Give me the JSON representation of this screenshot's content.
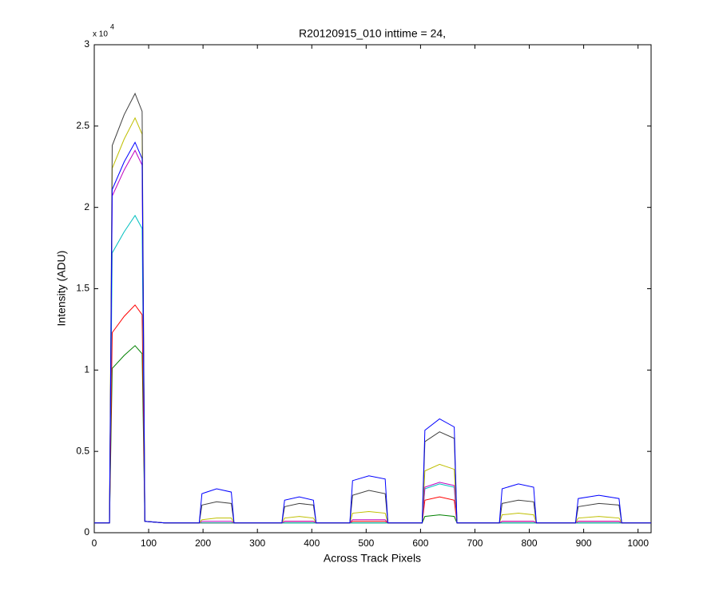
{
  "chart_data": {
    "type": "line",
    "title": "R20120915_010 inttime = 24,",
    "xlabel": "Across Track Pixels",
    "ylabel": "Intensity (ADU)",
    "y_multiplier": "x 10",
    "y_multiplier_exponent": "4",
    "xlim": [
      0,
      1024
    ],
    "ylim": [
      0,
      3
    ],
    "xticks": [
      0,
      100,
      200,
      300,
      400,
      500,
      600,
      700,
      800,
      900,
      1000
    ],
    "yticks": [
      0,
      0.5,
      1,
      1.5,
      2,
      2.5,
      3
    ],
    "x": [
      0,
      28,
      33,
      55,
      75,
      88,
      93,
      130,
      193,
      198,
      225,
      252,
      257,
      345,
      350,
      377,
      403,
      408,
      470,
      475,
      505,
      535,
      540,
      603,
      608,
      635,
      662,
      667,
      745,
      750,
      780,
      808,
      813,
      885,
      890,
      928,
      965,
      970,
      1024
    ],
    "series": [
      {
        "color": "#008000",
        "values": [
          0.06,
          0.06,
          1.01,
          1.09,
          1.15,
          1.1,
          0.07,
          0.06,
          0.06,
          0.06,
          0.06,
          0.06,
          0.06,
          0.06,
          0.06,
          0.06,
          0.06,
          0.06,
          0.06,
          0.06,
          0.06,
          0.06,
          0.06,
          0.06,
          0.1,
          0.11,
          0.1,
          0.06,
          0.06,
          0.06,
          0.06,
          0.06,
          0.06,
          0.06,
          0.06,
          0.06,
          0.06,
          0.06,
          0.06
        ]
      },
      {
        "color": "#ff0000",
        "values": [
          0.06,
          0.06,
          1.23,
          1.33,
          1.4,
          1.34,
          0.07,
          0.06,
          0.06,
          0.06,
          0.06,
          0.06,
          0.06,
          0.06,
          0.07,
          0.07,
          0.07,
          0.06,
          0.06,
          0.07,
          0.07,
          0.07,
          0.06,
          0.06,
          0.2,
          0.22,
          0.2,
          0.06,
          0.06,
          0.07,
          0.07,
          0.07,
          0.06,
          0.06,
          0.07,
          0.07,
          0.07,
          0.06,
          0.06
        ]
      },
      {
        "color": "#00bfbf",
        "values": [
          0.06,
          0.06,
          1.72,
          1.85,
          1.95,
          1.87,
          0.07,
          0.06,
          0.06,
          0.06,
          0.06,
          0.06,
          0.06,
          0.06,
          0.06,
          0.06,
          0.06,
          0.06,
          0.06,
          0.06,
          0.06,
          0.06,
          0.06,
          0.06,
          0.27,
          0.3,
          0.28,
          0.06,
          0.06,
          0.06,
          0.06,
          0.06,
          0.06,
          0.06,
          0.06,
          0.06,
          0.06,
          0.06,
          0.06
        ]
      },
      {
        "color": "#bf00bf",
        "values": [
          0.06,
          0.06,
          2.07,
          2.23,
          2.35,
          2.26,
          0.07,
          0.06,
          0.06,
          0.07,
          0.07,
          0.07,
          0.06,
          0.06,
          0.07,
          0.07,
          0.07,
          0.06,
          0.06,
          0.08,
          0.08,
          0.08,
          0.06,
          0.06,
          0.28,
          0.31,
          0.29,
          0.06,
          0.06,
          0.07,
          0.07,
          0.07,
          0.06,
          0.06,
          0.07,
          0.07,
          0.07,
          0.06,
          0.06
        ]
      },
      {
        "color": "#bfbf00",
        "values": [
          0.06,
          0.06,
          2.24,
          2.42,
          2.55,
          2.45,
          0.07,
          0.06,
          0.06,
          0.08,
          0.09,
          0.09,
          0.06,
          0.06,
          0.09,
          0.1,
          0.09,
          0.06,
          0.06,
          0.12,
          0.13,
          0.12,
          0.06,
          0.06,
          0.38,
          0.42,
          0.39,
          0.06,
          0.06,
          0.11,
          0.12,
          0.11,
          0.06,
          0.06,
          0.09,
          0.1,
          0.09,
          0.06,
          0.06
        ]
      },
      {
        "color": "#404040",
        "values": [
          0.06,
          0.06,
          2.38,
          2.57,
          2.7,
          2.59,
          0.07,
          0.06,
          0.06,
          0.17,
          0.19,
          0.18,
          0.06,
          0.06,
          0.16,
          0.18,
          0.17,
          0.06,
          0.06,
          0.23,
          0.26,
          0.24,
          0.06,
          0.06,
          0.56,
          0.62,
          0.58,
          0.06,
          0.06,
          0.18,
          0.2,
          0.19,
          0.06,
          0.06,
          0.16,
          0.18,
          0.17,
          0.06,
          0.06
        ]
      },
      {
        "color": "#0000ff",
        "values": [
          0.06,
          0.06,
          2.11,
          2.28,
          2.4,
          2.3,
          0.07,
          0.06,
          0.06,
          0.24,
          0.27,
          0.25,
          0.06,
          0.06,
          0.2,
          0.22,
          0.2,
          0.06,
          0.06,
          0.32,
          0.35,
          0.33,
          0.06,
          0.06,
          0.63,
          0.7,
          0.65,
          0.06,
          0.06,
          0.27,
          0.3,
          0.28,
          0.06,
          0.06,
          0.21,
          0.23,
          0.21,
          0.06,
          0.06
        ]
      }
    ]
  }
}
